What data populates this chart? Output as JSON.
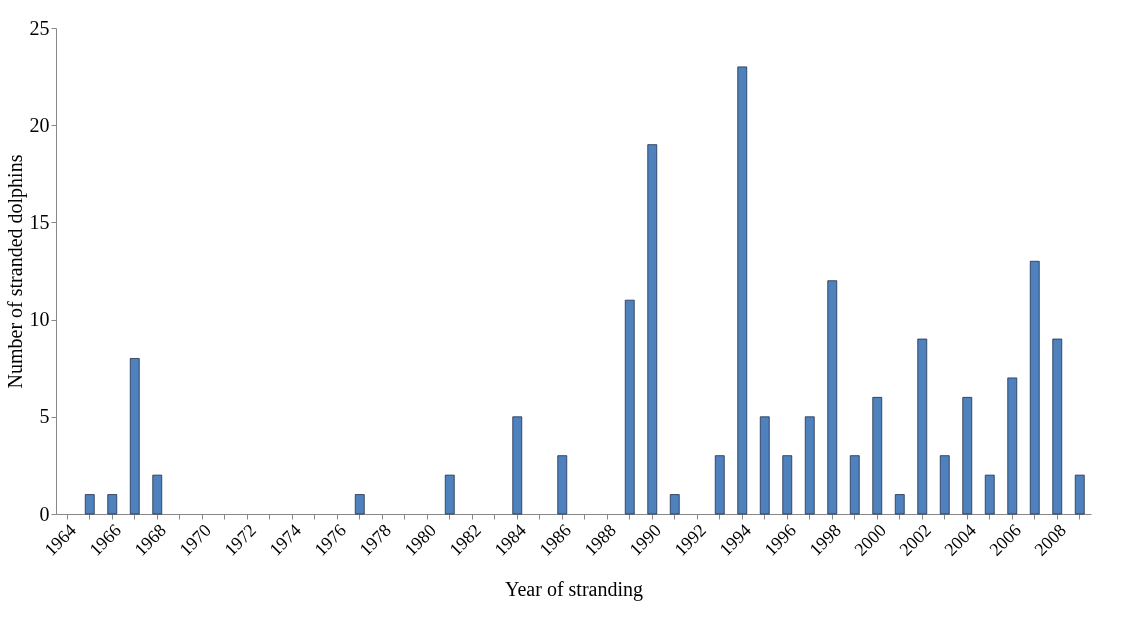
{
  "chart_data": {
    "type": "bar",
    "xlabel": "Year of stranding",
    "ylabel": "Number of stranded dolphins",
    "categories": [
      "1964",
      null,
      "1966",
      null,
      "1968",
      null,
      "1970",
      null,
      "1972",
      null,
      "1974",
      null,
      "1976",
      null,
      "1978",
      null,
      "1980",
      null,
      "1982",
      null,
      "1984",
      null,
      "1986",
      null,
      "1988",
      null,
      "1990",
      null,
      "1992",
      null,
      "1994",
      null,
      "1996",
      null,
      "1998",
      null,
      "2000",
      null,
      "2002",
      null,
      "2004",
      null,
      "2006",
      null,
      "2008",
      null
    ],
    "values": [
      0,
      1,
      1,
      8,
      2,
      0,
      0,
      0,
      0,
      0,
      0,
      0,
      0,
      1,
      0,
      0,
      0,
      2,
      0,
      0,
      5,
      0,
      3,
      0,
      0,
      11,
      19,
      1,
      0,
      3,
      23,
      5,
      3,
      5,
      12,
      3,
      6,
      1,
      9,
      3,
      6,
      2,
      7,
      13,
      9,
      2
    ],
    "color": "#4f81bd",
    "ylim": [
      0,
      25
    ],
    "yticks": [
      0,
      5,
      10,
      15,
      20,
      25
    ],
    "grid": false
  }
}
